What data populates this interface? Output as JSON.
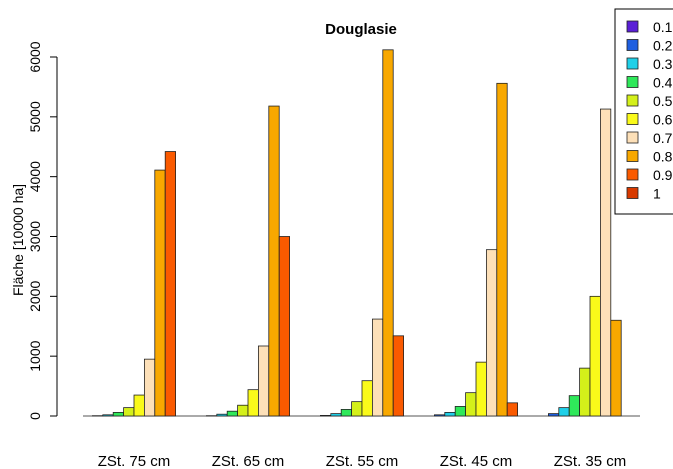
{
  "chart_data": {
    "type": "bar",
    "title": "Douglasie",
    "xlabel": "",
    "ylabel": "Fläche [10000 ha]",
    "ylim": [
      0,
      6300
    ],
    "yticks": [
      0,
      1000,
      2000,
      3000,
      4000,
      5000,
      6000
    ],
    "grid": false,
    "legend_position": "top-right",
    "categories": [
      "ZSt. 75 cm",
      "ZSt. 65 cm",
      "ZSt. 55 cm",
      "ZSt. 45 cm",
      "ZSt. 35 cm"
    ],
    "series": [
      {
        "name": "0.1",
        "color": "#5a1fd6",
        "values": [
          0,
          0,
          0,
          0,
          0
        ]
      },
      {
        "name": "0.2",
        "color": "#1f5fe0",
        "values": [
          5,
          5,
          10,
          20,
          40
        ]
      },
      {
        "name": "0.3",
        "color": "#1fd0e8",
        "values": [
          20,
          30,
          40,
          60,
          140
        ]
      },
      {
        "name": "0.4",
        "color": "#2fe85a",
        "values": [
          60,
          80,
          110,
          160,
          340
        ]
      },
      {
        "name": "0.5",
        "color": "#d4f01a",
        "values": [
          140,
          180,
          240,
          390,
          800
        ]
      },
      {
        "name": "0.6",
        "color": "#fafa1a",
        "values": [
          350,
          440,
          590,
          900,
          2000
        ]
      },
      {
        "name": "0.7",
        "color": "#fde0b8",
        "values": [
          950,
          1170,
          1620,
          2780,
          5130
        ]
      },
      {
        "name": "0.8",
        "color": "#f8a800",
        "values": [
          4110,
          5180,
          6120,
          5560,
          1600
        ]
      },
      {
        "name": "0.9",
        "color": "#fa5a00",
        "values": [
          4420,
          3000,
          1340,
          220,
          0
        ]
      },
      {
        "name": "1",
        "color": "#d83a00",
        "values": [
          0,
          0,
          0,
          0,
          0
        ]
      }
    ]
  }
}
